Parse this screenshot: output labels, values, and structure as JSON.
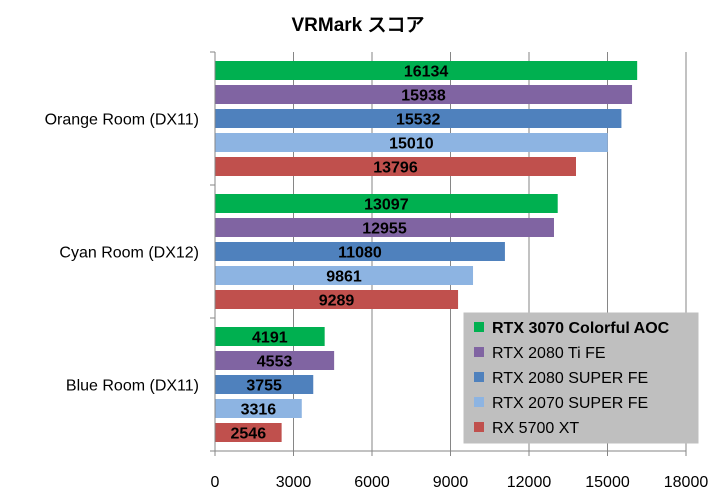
{
  "chart_data": {
    "type": "bar",
    "orientation": "horizontal",
    "title": "VRMark スコア",
    "xlabel": "",
    "ylabel": "",
    "xlim": [
      0,
      18000
    ],
    "x_ticks": [
      0,
      3000,
      6000,
      9000,
      12000,
      15000,
      18000
    ],
    "x_tick_labels": [
      "0",
      "3000",
      "6000",
      "9000",
      "12000",
      "15000",
      "18000"
    ],
    "grid": "vertical",
    "legend_position": "bottom-right",
    "categories": [
      "Orange Room (DX11)",
      "Cyan Room (DX12)",
      "Blue Room (DX11)"
    ],
    "series": [
      {
        "name": "RTX 3070 Colorful AOC",
        "color": "#00b050",
        "values": [
          16134,
          13097,
          4191
        ]
      },
      {
        "name": "RTX 2080 Ti FE",
        "color": "#8064a2",
        "values": [
          15938,
          12955,
          4553
        ]
      },
      {
        "name": "RTX 2080 SUPER FE",
        "color": "#4f81bd",
        "values": [
          15532,
          11080,
          3755
        ]
      },
      {
        "name": "RTX 2070 SUPER FE",
        "color": "#8db4e2",
        "values": [
          15010,
          9861,
          3316
        ]
      },
      {
        "name": "RX 5700 XT",
        "color": "#c0504d",
        "values": [
          13796,
          9289,
          2546
        ]
      }
    ],
    "data_labels": [
      [
        "16134",
        "15938",
        "15532",
        "15010",
        "13796"
      ],
      [
        "13097",
        "12955",
        "11080",
        "9861",
        "9289"
      ],
      [
        "4191",
        "4553",
        "3755",
        "3316",
        "2546"
      ]
    ]
  }
}
